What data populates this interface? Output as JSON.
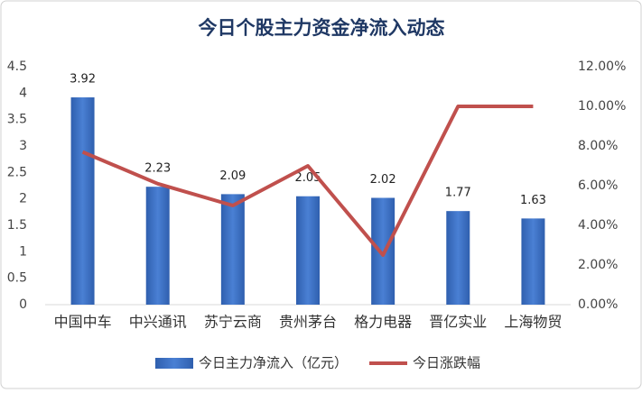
{
  "chart_data": {
    "type": "bar_line",
    "title": "今日个股主力资金净流入动态",
    "categories": [
      "中国中车",
      "中兴通讯",
      "苏宁云商",
      "贵州茅台",
      "格力电器",
      "晋亿实业",
      "上海物贸"
    ],
    "series": [
      {
        "name": "今日主力净流入（亿元）",
        "type": "bar",
        "color": "#3b6fc2",
        "values": [
          3.92,
          2.23,
          2.09,
          2.05,
          2.02,
          1.77,
          1.63
        ]
      },
      {
        "name": "今日涨跌幅",
        "type": "line",
        "axis": "y2",
        "color": "#c0504d",
        "values": [
          7.7,
          6.1,
          5.0,
          7.0,
          2.5,
          10.0,
          10.0
        ]
      }
    ],
    "ylim": [
      0,
      4.5
    ],
    "yticks": [
      0,
      0.5,
      1,
      1.5,
      2,
      2.5,
      3,
      3.5,
      4,
      4.5
    ],
    "y2lim": [
      0,
      12
    ],
    "y2ticks": [
      {
        "value": 0,
        "label": "0.00%"
      },
      {
        "value": 2,
        "label": "2.00%"
      },
      {
        "value": 4,
        "label": "4.00%"
      },
      {
        "value": 6,
        "label": "6.00%"
      },
      {
        "value": 8,
        "label": "8.00%"
      },
      {
        "value": 10,
        "label": "10.00%"
      },
      {
        "value": 12,
        "label": "12.00%"
      }
    ],
    "grid": false,
    "legend": "bottom"
  }
}
